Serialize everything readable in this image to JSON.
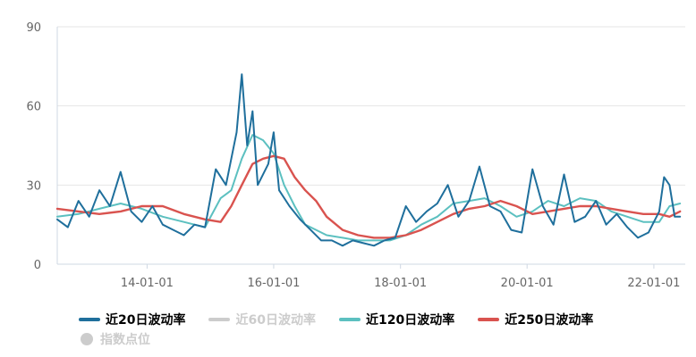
{
  "chart_data": {
    "type": "line",
    "y_ticks": [
      "0",
      "30",
      "60",
      "90"
    ],
    "ylim": [
      0,
      90
    ],
    "x_ticks": [
      "14-01-01",
      "16-01-01",
      "18-01-01",
      "20-01-01",
      "22-01-01"
    ],
    "x_range": [
      "2012-08-01",
      "2022-07-01"
    ],
    "grid": "horizontal",
    "legend_position": "bottom-left",
    "series": [
      {
        "name": "近20日波动率",
        "color": "#1f6f9c",
        "visible": true,
        "points": [
          [
            "2012-08",
            17
          ],
          [
            "2012-10",
            14
          ],
          [
            "2012-12",
            24
          ],
          [
            "2013-02",
            18
          ],
          [
            "2013-04",
            28
          ],
          [
            "2013-06",
            22
          ],
          [
            "2013-08",
            35
          ],
          [
            "2013-10",
            20
          ],
          [
            "2013-12",
            16
          ],
          [
            "2014-02",
            22
          ],
          [
            "2014-04",
            15
          ],
          [
            "2014-06",
            13
          ],
          [
            "2014-08",
            11
          ],
          [
            "2014-10",
            15
          ],
          [
            "2014-12",
            14
          ],
          [
            "2015-02",
            36
          ],
          [
            "2015-04",
            30
          ],
          [
            "2015-06",
            50
          ],
          [
            "2015-07",
            72
          ],
          [
            "2015-08",
            45
          ],
          [
            "2015-09",
            58
          ],
          [
            "2015-10",
            30
          ],
          [
            "2015-12",
            38
          ],
          [
            "2016-01",
            50
          ],
          [
            "2016-02",
            28
          ],
          [
            "2016-04",
            22
          ],
          [
            "2016-06",
            17
          ],
          [
            "2016-08",
            13
          ],
          [
            "2016-10",
            9
          ],
          [
            "2016-12",
            9
          ],
          [
            "2017-02",
            7
          ],
          [
            "2017-04",
            9
          ],
          [
            "2017-06",
            8
          ],
          [
            "2017-08",
            7
          ],
          [
            "2017-10",
            9
          ],
          [
            "2017-12",
            10
          ],
          [
            "2018-02",
            22
          ],
          [
            "2018-04",
            16
          ],
          [
            "2018-06",
            20
          ],
          [
            "2018-08",
            23
          ],
          [
            "2018-10",
            30
          ],
          [
            "2018-12",
            18
          ],
          [
            "2019-02",
            24
          ],
          [
            "2019-04",
            37
          ],
          [
            "2019-06",
            22
          ],
          [
            "2019-08",
            20
          ],
          [
            "2019-10",
            13
          ],
          [
            "2019-12",
            12
          ],
          [
            "2020-02",
            36
          ],
          [
            "2020-04",
            22
          ],
          [
            "2020-06",
            15
          ],
          [
            "2020-08",
            34
          ],
          [
            "2020-10",
            16
          ],
          [
            "2020-12",
            18
          ],
          [
            "2021-02",
            24
          ],
          [
            "2021-04",
            15
          ],
          [
            "2021-06",
            19
          ],
          [
            "2021-08",
            14
          ],
          [
            "2021-10",
            10
          ],
          [
            "2021-12",
            12
          ],
          [
            "2022-02",
            20
          ],
          [
            "2022-03",
            33
          ],
          [
            "2022-04",
            30
          ],
          [
            "2022-05",
            18
          ],
          [
            "2022-06",
            18
          ]
        ]
      },
      {
        "name": "近60日波动率",
        "color": "#cccccc",
        "visible": false,
        "points": []
      },
      {
        "name": "近120日波动率",
        "color": "#5cc0c0",
        "visible": true,
        "points": [
          [
            "2012-08",
            18
          ],
          [
            "2012-12",
            19
          ],
          [
            "2013-04",
            21
          ],
          [
            "2013-08",
            23
          ],
          [
            "2013-12",
            21
          ],
          [
            "2014-04",
            18
          ],
          [
            "2014-08",
            16
          ],
          [
            "2014-12",
            14
          ],
          [
            "2015-03",
            25
          ],
          [
            "2015-05",
            28
          ],
          [
            "2015-07",
            40
          ],
          [
            "2015-09",
            49
          ],
          [
            "2015-11",
            47
          ],
          [
            "2016-01",
            42
          ],
          [
            "2016-03",
            30
          ],
          [
            "2016-05",
            22
          ],
          [
            "2016-07",
            15
          ],
          [
            "2016-09",
            13
          ],
          [
            "2016-11",
            11
          ],
          [
            "2017-02",
            10
          ],
          [
            "2017-05",
            9
          ],
          [
            "2017-08",
            9
          ],
          [
            "2017-11",
            9
          ],
          [
            "2018-02",
            11
          ],
          [
            "2018-05",
            15
          ],
          [
            "2018-08",
            18
          ],
          [
            "2018-11",
            23
          ],
          [
            "2019-02",
            24
          ],
          [
            "2019-05",
            25
          ],
          [
            "2019-08",
            22
          ],
          [
            "2019-11",
            18
          ],
          [
            "2020-02",
            20
          ],
          [
            "2020-05",
            24
          ],
          [
            "2020-08",
            22
          ],
          [
            "2020-11",
            25
          ],
          [
            "2021-02",
            24
          ],
          [
            "2021-05",
            20
          ],
          [
            "2021-08",
            18
          ],
          [
            "2021-11",
            16
          ],
          [
            "2022-02",
            16
          ],
          [
            "2022-04",
            22
          ],
          [
            "2022-06",
            23
          ]
        ]
      },
      {
        "name": "近250日波动率",
        "color": "#d9534f",
        "visible": true,
        "points": [
          [
            "2012-08",
            21
          ],
          [
            "2012-12",
            20
          ],
          [
            "2013-04",
            19
          ],
          [
            "2013-08",
            20
          ],
          [
            "2013-12",
            22
          ],
          [
            "2014-04",
            22
          ],
          [
            "2014-08",
            19
          ],
          [
            "2014-12",
            17
          ],
          [
            "2015-03",
            16
          ],
          [
            "2015-05",
            22
          ],
          [
            "2015-07",
            30
          ],
          [
            "2015-09",
            38
          ],
          [
            "2015-11",
            40
          ],
          [
            "2016-01",
            41
          ],
          [
            "2016-03",
            40
          ],
          [
            "2016-05",
            33
          ],
          [
            "2016-07",
            28
          ],
          [
            "2016-09",
            24
          ],
          [
            "2016-11",
            18
          ],
          [
            "2017-02",
            13
          ],
          [
            "2017-05",
            11
          ],
          [
            "2017-08",
            10
          ],
          [
            "2017-11",
            10
          ],
          [
            "2018-02",
            11
          ],
          [
            "2018-05",
            13
          ],
          [
            "2018-08",
            16
          ],
          [
            "2018-11",
            19
          ],
          [
            "2019-02",
            21
          ],
          [
            "2019-05",
            22
          ],
          [
            "2019-08",
            24
          ],
          [
            "2019-11",
            22
          ],
          [
            "2020-02",
            19
          ],
          [
            "2020-05",
            20
          ],
          [
            "2020-08",
            21
          ],
          [
            "2020-11",
            22
          ],
          [
            "2021-02",
            22
          ],
          [
            "2021-05",
            21
          ],
          [
            "2021-08",
            20
          ],
          [
            "2021-11",
            19
          ],
          [
            "2022-02",
            19
          ],
          [
            "2022-04",
            18
          ],
          [
            "2022-06",
            20
          ]
        ]
      }
    ]
  },
  "legend": {
    "items": [
      {
        "label": "近20日波动率",
        "color": "#1f6f9c",
        "active": true
      },
      {
        "label": "近60日波动率",
        "color": "#cccccc",
        "active": false
      },
      {
        "label": "近120日波动率",
        "color": "#5cc0c0",
        "active": true
      },
      {
        "label": "近250日波动率",
        "color": "#d9534f",
        "active": true
      },
      {
        "label": "指数点位",
        "color": "#cccccc",
        "active": false
      }
    ]
  }
}
